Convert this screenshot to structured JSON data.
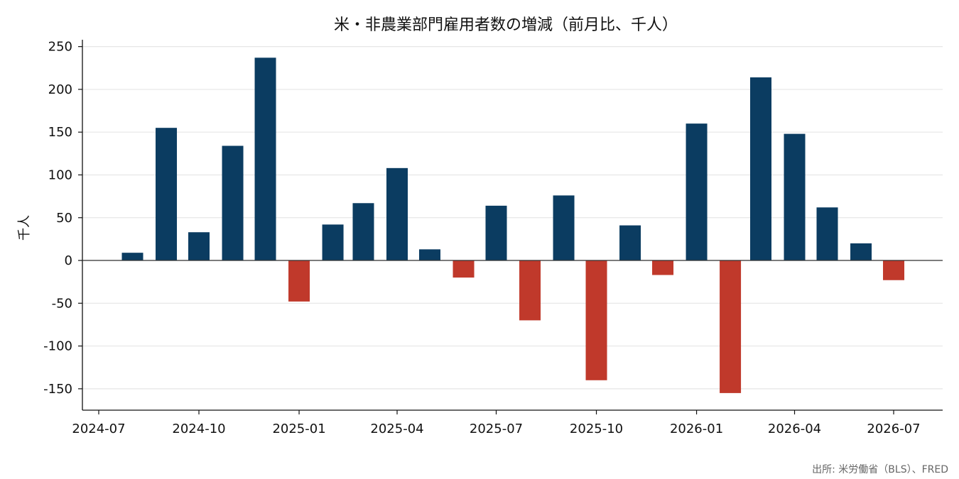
{
  "chart_data": {
    "type": "bar",
    "title": "米・非農業部門雇用者数の増減（前月比、千人）",
    "ylabel": "千人",
    "xlabel": "",
    "source": "出所: 米労働省（BLS）、FRED",
    "ylim": [
      -175,
      258
    ],
    "yticks": [
      -150,
      -100,
      -50,
      0,
      50,
      100,
      150,
      200,
      250
    ],
    "xlim": [
      "2024-06-16",
      "2026-08-15"
    ],
    "xticks": [
      "2024-07",
      "2024-10",
      "2025-01",
      "2025-04",
      "2025-07",
      "2025-10",
      "2026-01",
      "2026-04",
      "2026-07"
    ],
    "grid": "horizontal",
    "colors": {
      "positive": "#0b3c61",
      "negative": "#c0392b",
      "grid": "#e6e6e6",
      "zero_line": "#333333"
    },
    "categories": [
      "2024-08",
      "2024-09",
      "2024-10",
      "2024-11",
      "2024-12",
      "2025-01",
      "2025-02",
      "2025-03",
      "2025-04",
      "2025-05",
      "2025-06",
      "2025-07",
      "2025-08",
      "2025-09",
      "2025-10",
      "2025-11",
      "2025-12",
      "2026-01",
      "2026-02",
      "2026-03",
      "2026-04",
      "2026-05",
      "2026-06",
      "2026-07"
    ],
    "values": [
      9,
      155,
      33,
      134,
      237,
      -48,
      42,
      67,
      108,
      13,
      -20,
      64,
      -70,
      76,
      -140,
      41,
      -17,
      160,
      -155,
      214,
      148,
      62,
      20,
      -23
    ]
  }
}
